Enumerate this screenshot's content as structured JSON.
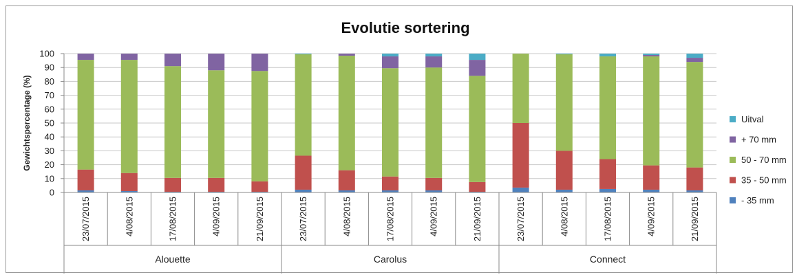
{
  "chart_data": {
    "type": "bar",
    "stacked": true,
    "title": "Evolutie sortering",
    "ylabel": "Gewichtspercentage (%)",
    "ylim": [
      0,
      100
    ],
    "yticks": [
      0,
      10,
      20,
      30,
      40,
      50,
      60,
      70,
      80,
      90,
      100
    ],
    "grid": true,
    "legend_position": "right",
    "groups": [
      {
        "name": "Alouette",
        "categories": [
          "23/07/2015",
          "4/08/2015",
          "17/08/2015",
          "4/09/2015",
          "21/09/2015"
        ]
      },
      {
        "name": "Carolus",
        "categories": [
          "23/07/2015",
          "4/08/2015",
          "17/08/2015",
          "4/09/2015",
          "21/09/2015"
        ]
      },
      {
        "name": "Connect",
        "categories": [
          "23/07/2015",
          "4/08/2015",
          "17/08/2015",
          "4/09/2015",
          "21/09/2015"
        ]
      }
    ],
    "series": [
      {
        "name": "- 35 mm",
        "color": "#4f81bd",
        "values": [
          1.5,
          1,
          0.5,
          0.5,
          0.5,
          2,
          1.5,
          1.5,
          1.5,
          0.5,
          3.5,
          2,
          2.5,
          2,
          1.5
        ]
      },
      {
        "name": "35 - 50 mm",
        "color": "#c0504d",
        "values": [
          15,
          13,
          10,
          10,
          7.5,
          24.5,
          14.5,
          10,
          9,
          7,
          46.5,
          28,
          21.5,
          17.5,
          16.5
        ]
      },
      {
        "name": "50 - 70 mm",
        "color": "#9bbb59",
        "values": [
          79,
          81.5,
          80.5,
          77.5,
          79.5,
          73,
          82.5,
          78,
          79.5,
          76.5,
          50,
          69.5,
          74,
          78.5,
          76
        ]
      },
      {
        "name": "+ 70 mm",
        "color": "#8064a2",
        "values": [
          4.5,
          4.5,
          9,
          12,
          12.5,
          0,
          1.5,
          8.5,
          8,
          11.5,
          0,
          0,
          0,
          1,
          3
        ]
      },
      {
        "name": "Uitval",
        "color": "#4bacc6",
        "values": [
          0,
          0,
          0,
          0,
          0,
          0.5,
          0,
          2,
          2,
          4.5,
          0,
          0.5,
          2,
          1,
          3
        ]
      }
    ]
  }
}
